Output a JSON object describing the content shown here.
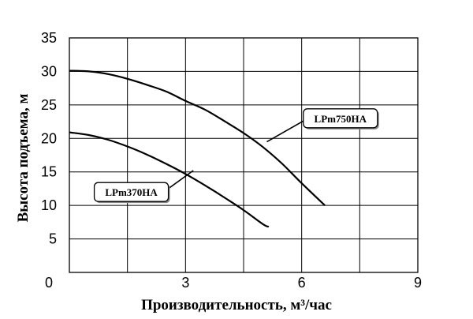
{
  "chart_data": {
    "type": "line",
    "xlabel": "Производительность, м³/час",
    "ylabel": "Высота подъема, м",
    "xlim": [
      0,
      9
    ],
    "ylim": [
      0,
      35
    ],
    "x_ticks": [
      0,
      3,
      6,
      9
    ],
    "x_tick_labels": [
      "",
      "3",
      "6",
      "9"
    ],
    "y_ticks": [
      5,
      10,
      15,
      20,
      25,
      30,
      35
    ],
    "y_tick_labels": [
      "5",
      "10",
      "15",
      "20",
      "25",
      "30",
      "35"
    ],
    "origin_label": "0",
    "grid": true,
    "series": [
      {
        "name": "LPm750HA",
        "x": [
          0,
          0.5,
          1,
          1.5,
          2,
          2.5,
          3,
          3.5,
          4,
          4.5,
          5,
          5.5,
          6,
          6.6
        ],
        "y": [
          30.1,
          30.0,
          29.6,
          28.9,
          28.0,
          27.0,
          25.6,
          24.3,
          22.6,
          20.8,
          18.7,
          16.2,
          13.3,
          10.0
        ],
        "label_x": 7.0,
        "label_y": 23.0,
        "arrow_x": 5.1,
        "arrow_y": 19.5
      },
      {
        "name": "LPm370HA",
        "x": [
          0,
          0.5,
          1,
          1.5,
          2,
          2.5,
          3,
          3.5,
          4,
          4.5,
          5,
          5.15
        ],
        "y": [
          20.9,
          20.5,
          19.8,
          18.8,
          17.6,
          16.2,
          14.7,
          13.0,
          11.2,
          9.3,
          7.2,
          6.8
        ],
        "label_x": 1.6,
        "label_y": 12.0,
        "arrow_x": 3.2,
        "arrow_y": 15.2
      }
    ]
  }
}
